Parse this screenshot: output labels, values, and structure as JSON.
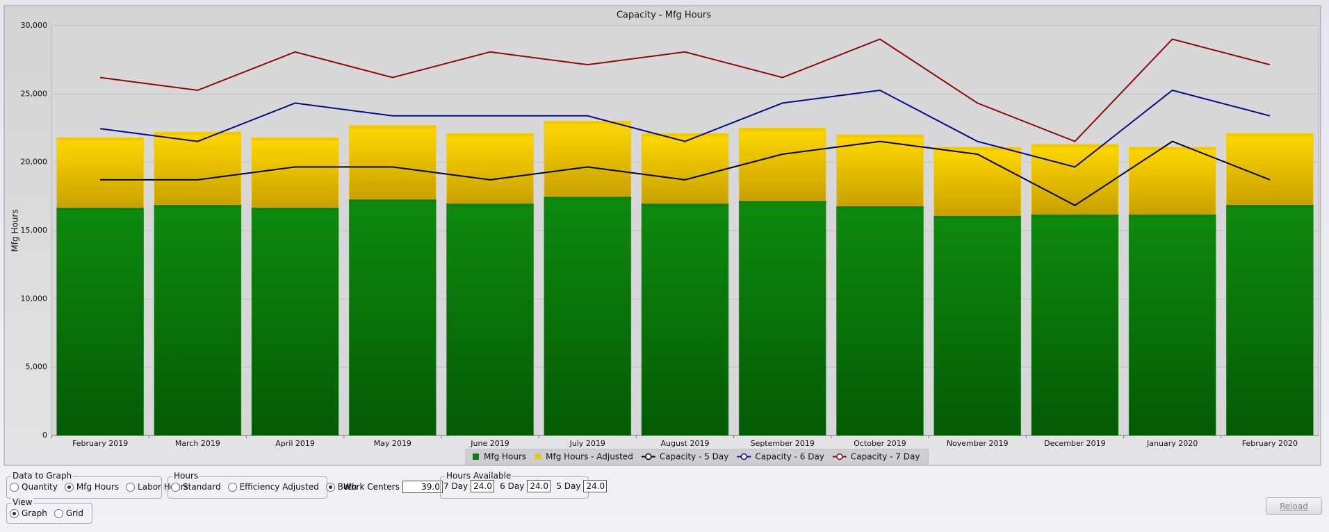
{
  "chart_data": {
    "type": "bar",
    "title": "Capacity - Mfg Hours",
    "y_label": "Mfg Hours",
    "stacked": true,
    "grid": true,
    "legend": "bottom",
    "categories": [
      "February 2019",
      "March 2019",
      "April 2019",
      "May 2019",
      "June 2019",
      "July 2019",
      "August 2019",
      "September 2019",
      "October 2019",
      "November 2019",
      "December 2019",
      "January 2020",
      "February 2020"
    ],
    "series": [
      {
        "name": "Mfg Hours",
        "type": "bar",
        "color": "#0b7d0b",
        "values": [
          16700,
          16900,
          16700,
          17300,
          17000,
          17500,
          17000,
          17200,
          16800,
          16100,
          16200,
          16200,
          16900
        ]
      },
      {
        "name": "Mfg Hours - Adjusted",
        "type": "bar",
        "color": "#f0c800",
        "values": [
          5100,
          5300,
          5100,
          5400,
          5100,
          5500,
          5100,
          5300,
          5200,
          5000,
          5100,
          4900,
          5200
        ]
      },
      {
        "name": "Capacity - 5 Day",
        "type": "line",
        "color": "#000000",
        "values": [
          18720,
          18720,
          19656,
          19656,
          18720,
          19656,
          18720,
          20592,
          21528,
          20592,
          16848,
          21528,
          18720
        ]
      },
      {
        "name": "Capacity - 6 Day",
        "type": "line",
        "color": "#0a0a8c",
        "values": [
          22464,
          21528,
          24336,
          23400,
          23400,
          23400,
          21528,
          24336,
          25272,
          21528,
          19656,
          25272,
          23400
        ]
      },
      {
        "name": "Capacity - 7 Day",
        "type": "line",
        "color": "#8c0a0a",
        "values": [
          26208,
          25272,
          28080,
          26208,
          28080,
          27144,
          28080,
          26208,
          29016,
          24336,
          21528,
          29016,
          27144
        ]
      }
    ],
    "ylim": [
      0,
      30000
    ],
    "yticks": [
      0,
      {
        "value": 5000,
        "label": "5,000"
      },
      {
        "value": 10000,
        "label": "10,000"
      },
      {
        "value": 15000,
        "label": "15,000"
      },
      {
        "value": 20000,
        "label": "20,000"
      },
      {
        "value": 25000,
        "label": "25,000"
      },
      {
        "value": 30000,
        "label": "30,000"
      }
    ]
  },
  "ui": {
    "data_to_graph": {
      "label": "Data to Graph",
      "options": [
        "Quantity",
        "Mfg Hours",
        "Labor Hours"
      ],
      "selected": "Mfg Hours"
    },
    "hours": {
      "label": "Hours",
      "options": [
        "Standard",
        "Efficiency Adjusted",
        "Both"
      ],
      "selected": "Both"
    },
    "work_centers": {
      "label": "Work Centers",
      "value": "39.0"
    },
    "hours_available": {
      "label": "Hours Available",
      "fields": [
        {
          "label": "7 Day",
          "value": "24.0"
        },
        {
          "label": "6 Day",
          "value": "24.0"
        },
        {
          "label": "5 Day",
          "value": "24.0"
        }
      ]
    },
    "view": {
      "label": "View",
      "options": [
        "Graph",
        "Grid"
      ],
      "selected": "Graph"
    },
    "reload": "Reload"
  }
}
